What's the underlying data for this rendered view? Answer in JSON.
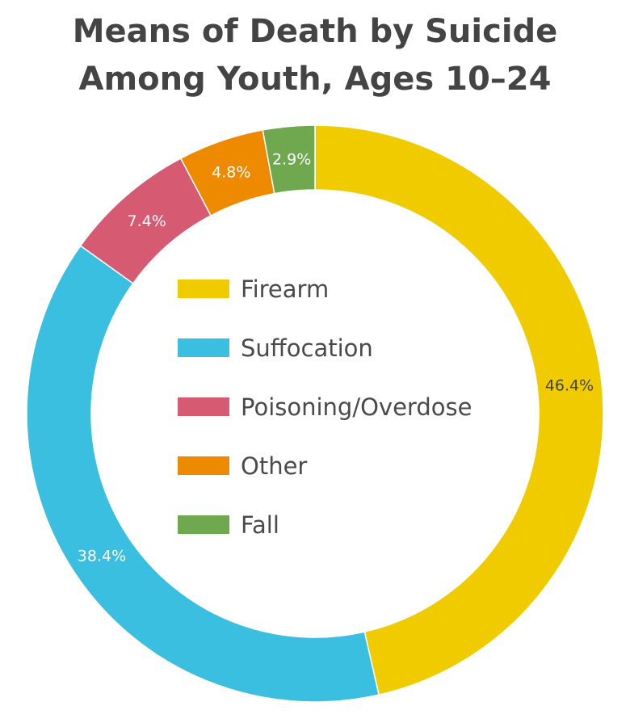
{
  "chart_data": {
    "type": "pie",
    "variant": "donut",
    "title_lines": [
      "Means of Death by Suicide",
      "Among Youth, Ages 10–24"
    ],
    "legend_placement": "center",
    "slices": [
      {
        "name": "Firearm",
        "value": 46.4,
        "label": "46.4%",
        "color": "#f0cb00",
        "label_color": "#444444"
      },
      {
        "name": "Suffocation",
        "value": 38.4,
        "label": "38.4%",
        "color": "#3bbfe0",
        "label_color": "#ffffff"
      },
      {
        "name": "Poisoning/Overdose",
        "value": 7.4,
        "label": "7.4%",
        "color": "#d65a72",
        "label_color": "#ffffff"
      },
      {
        "name": "Other",
        "value": 4.8,
        "label": "4.8%",
        "color": "#ee8a00",
        "label_color": "#ffffff"
      },
      {
        "name": "Fall",
        "value": 2.9,
        "label": "2.9%",
        "color": "#6fa84f",
        "label_color": "#ffffff"
      }
    ]
  }
}
